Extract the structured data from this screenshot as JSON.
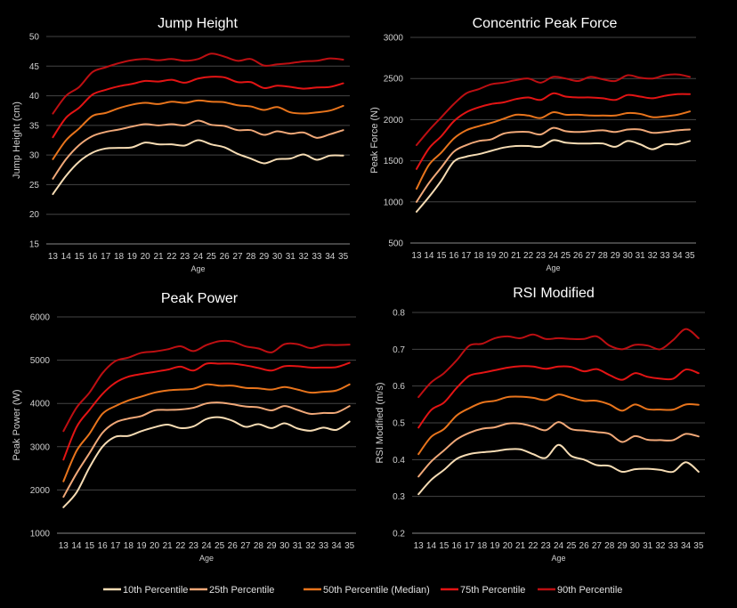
{
  "colors": {
    "background": "#000000",
    "p10": "#f6dcb4",
    "p25": "#f0a878",
    "p50": "#e8741c",
    "p75": "#e31414",
    "p90": "#bd0f12"
  },
  "legend": {
    "placement": "bottom",
    "entries": [
      "10th Percentile",
      "25th Percentile",
      "50th Percentile (Median)",
      "75th Percentile",
      "90th Percentile"
    ]
  },
  "chart_data": [
    {
      "type": "line",
      "title": "Jump Height",
      "xlabel": "Age",
      "ylabel": "Jump Height (cm)",
      "ylim": [
        15,
        50
      ],
      "yticks": [
        15,
        20,
        25,
        30,
        35,
        40,
        45,
        50
      ],
      "grid": true,
      "categories": [
        "13",
        "14",
        "15",
        "16",
        "17",
        "18",
        "19",
        "20",
        "21",
        "22",
        "23",
        "24",
        "25",
        "26",
        "27",
        "28",
        "29",
        "30",
        "31",
        "32",
        "33",
        "34",
        "35"
      ],
      "series": [
        {
          "name": "10th Percentile",
          "values": [
            23.4,
            26.5,
            28.9,
            30.4,
            31.1,
            31.2,
            31.3,
            32.1,
            31.8,
            31.8,
            31.6,
            32.5,
            31.8,
            31.3,
            30.2,
            29.4,
            28.6,
            29.3,
            29.4,
            30.1,
            29.2,
            29.9,
            29.9
          ]
        },
        {
          "name": "25th Percentile",
          "values": [
            26,
            29.3,
            31.7,
            33.2,
            33.9,
            34.3,
            34.8,
            35.2,
            35,
            35.2,
            35,
            35.8,
            35.1,
            34.9,
            34.2,
            34.2,
            33.4,
            34,
            33.6,
            33.8,
            32.9,
            33.5,
            34.2
          ]
        },
        {
          "name": "50th Percentile (Median)",
          "values": [
            29.3,
            32.5,
            34.5,
            36.6,
            37.1,
            37.9,
            38.5,
            38.8,
            38.6,
            39,
            38.8,
            39.2,
            39,
            38.9,
            38.4,
            38.2,
            37.6,
            38.1,
            37.2,
            37,
            37.2,
            37.5,
            38.3
          ]
        },
        {
          "name": "75th Percentile",
          "values": [
            33,
            36.3,
            38,
            40.2,
            41,
            41.6,
            42,
            42.5,
            42.4,
            42.7,
            42.2,
            42.9,
            43.2,
            43.1,
            42.3,
            42.3,
            41.3,
            41.7,
            41.5,
            41.2,
            41.4,
            41.5,
            42.1
          ]
        },
        {
          "name": "90th Percentile",
          "values": [
            37,
            40,
            41.5,
            44,
            44.8,
            45.5,
            46,
            46.2,
            46,
            46.2,
            45.9,
            46.2,
            47.1,
            46.6,
            45.9,
            46.2,
            45.1,
            45.3,
            45.5,
            45.8,
            45.9,
            46.3,
            46.1
          ]
        }
      ]
    },
    {
      "type": "line",
      "title": "Concentric Peak Force",
      "xlabel": "Age",
      "ylabel": "Peak Force (N)",
      "ylim": [
        500,
        3000
      ],
      "yticks": [
        500,
        1000,
        1500,
        2000,
        2500,
        3000
      ],
      "grid": true,
      "categories": [
        "13",
        "14",
        "15",
        "16",
        "17",
        "18",
        "19",
        "20",
        "21",
        "22",
        "23",
        "24",
        "25",
        "26",
        "27",
        "28",
        "29",
        "30",
        "31",
        "32",
        "33",
        "34",
        "35"
      ],
      "series": [
        {
          "name": "10th Percentile",
          "values": [
            880,
            1060,
            1260,
            1490,
            1550,
            1580,
            1620,
            1660,
            1680,
            1680,
            1670,
            1750,
            1720,
            1710,
            1710,
            1710,
            1670,
            1740,
            1700,
            1640,
            1700,
            1700,
            1740
          ]
        },
        {
          "name": "25th Percentile",
          "values": [
            1000,
            1230,
            1420,
            1610,
            1690,
            1740,
            1760,
            1830,
            1850,
            1850,
            1820,
            1900,
            1860,
            1850,
            1860,
            1870,
            1850,
            1880,
            1880,
            1840,
            1850,
            1870,
            1880
          ]
        },
        {
          "name": "50th Percentile (Median)",
          "values": [
            1160,
            1450,
            1600,
            1770,
            1870,
            1920,
            1960,
            2010,
            2060,
            2050,
            2020,
            2090,
            2060,
            2060,
            2050,
            2050,
            2050,
            2080,
            2070,
            2030,
            2040,
            2060,
            2100
          ]
        },
        {
          "name": "75th Percentile",
          "values": [
            1400,
            1650,
            1800,
            1980,
            2090,
            2150,
            2190,
            2210,
            2250,
            2270,
            2240,
            2320,
            2280,
            2270,
            2270,
            2260,
            2240,
            2300,
            2280,
            2260,
            2290,
            2310,
            2310
          ]
        },
        {
          "name": "90th Percentile",
          "values": [
            1690,
            1870,
            2030,
            2190,
            2320,
            2370,
            2430,
            2450,
            2480,
            2500,
            2450,
            2520,
            2500,
            2470,
            2520,
            2490,
            2470,
            2540,
            2510,
            2500,
            2540,
            2550,
            2520
          ]
        }
      ]
    },
    {
      "type": "line",
      "title": "Peak Power",
      "xlabel": "Age",
      "ylabel": "Peak Power (W)",
      "ylim": [
        1000,
        6000
      ],
      "yticks": [
        1000,
        2000,
        3000,
        4000,
        5000,
        6000
      ],
      "grid": true,
      "categories": [
        "13",
        "14",
        "15",
        "16",
        "17",
        "18",
        "19",
        "20",
        "21",
        "22",
        "23",
        "24",
        "25",
        "26",
        "27",
        "28",
        "29",
        "30",
        "31",
        "32",
        "33",
        "34",
        "35"
      ],
      "series": [
        {
          "name": "10th Percentile",
          "values": [
            1600,
            1940,
            2520,
            3000,
            3230,
            3250,
            3360,
            3450,
            3510,
            3430,
            3470,
            3640,
            3680,
            3600,
            3460,
            3520,
            3430,
            3540,
            3420,
            3370,
            3440,
            3390,
            3580
          ]
        },
        {
          "name": "25th Percentile",
          "values": [
            1840,
            2380,
            2850,
            3320,
            3560,
            3650,
            3710,
            3840,
            3850,
            3860,
            3900,
            4000,
            4020,
            3980,
            3930,
            3910,
            3840,
            3940,
            3850,
            3760,
            3780,
            3790,
            3940
          ]
        },
        {
          "name": "50th Percentile (Median)",
          "values": [
            2200,
            2900,
            3300,
            3760,
            3940,
            4070,
            4160,
            4250,
            4300,
            4320,
            4340,
            4440,
            4410,
            4410,
            4360,
            4350,
            4320,
            4380,
            4320,
            4250,
            4270,
            4300,
            4440
          ]
        },
        {
          "name": "75th Percentile",
          "values": [
            2700,
            3450,
            3850,
            4220,
            4480,
            4620,
            4680,
            4730,
            4780,
            4850,
            4760,
            4920,
            4920,
            4920,
            4880,
            4820,
            4760,
            4860,
            4860,
            4830,
            4830,
            4840,
            4940
          ]
        },
        {
          "name": "90th Percentile",
          "values": [
            3360,
            3900,
            4250,
            4700,
            4980,
            5060,
            5170,
            5200,
            5250,
            5320,
            5210,
            5350,
            5440,
            5430,
            5320,
            5270,
            5180,
            5370,
            5370,
            5280,
            5350,
            5350,
            5360
          ]
        }
      ]
    },
    {
      "type": "line",
      "title": "RSI Modified",
      "xlabel": "Age",
      "ylabel": "RSI Modified (m/s)",
      "ylim": [
        0.2,
        0.8
      ],
      "yticks": [
        0.2,
        0.3,
        0.4,
        0.5,
        0.6,
        0.7,
        0.8
      ],
      "grid": true,
      "categories": [
        "13",
        "14",
        "15",
        "16",
        "17",
        "18",
        "19",
        "20",
        "21",
        "22",
        "23",
        "24",
        "25",
        "26",
        "27",
        "28",
        "29",
        "30",
        "31",
        "32",
        "33",
        "34",
        "35"
      ],
      "series": [
        {
          "name": "10th Percentile",
          "values": [
            0.306,
            0.345,
            0.372,
            0.402,
            0.415,
            0.42,
            0.423,
            0.428,
            0.428,
            0.415,
            0.405,
            0.44,
            0.41,
            0.4,
            0.385,
            0.383,
            0.367,
            0.374,
            0.375,
            0.372,
            0.367,
            0.393,
            0.367
          ]
        },
        {
          "name": "25th Percentile",
          "values": [
            0.354,
            0.395,
            0.425,
            0.455,
            0.473,
            0.484,
            0.488,
            0.498,
            0.498,
            0.49,
            0.48,
            0.502,
            0.483,
            0.479,
            0.475,
            0.47,
            0.448,
            0.464,
            0.454,
            0.453,
            0.453,
            0.47,
            0.463
          ]
        },
        {
          "name": "50th Percentile (Median)",
          "values": [
            0.415,
            0.462,
            0.483,
            0.52,
            0.54,
            0.555,
            0.56,
            0.57,
            0.571,
            0.568,
            0.562,
            0.577,
            0.568,
            0.56,
            0.56,
            0.55,
            0.533,
            0.55,
            0.537,
            0.536,
            0.536,
            0.55,
            0.549
          ]
        },
        {
          "name": "75th Percentile",
          "values": [
            0.487,
            0.535,
            0.555,
            0.595,
            0.628,
            0.636,
            0.643,
            0.65,
            0.654,
            0.653,
            0.647,
            0.653,
            0.652,
            0.64,
            0.646,
            0.63,
            0.617,
            0.635,
            0.625,
            0.62,
            0.62,
            0.645,
            0.635
          ]
        },
        {
          "name": "90th Percentile",
          "values": [
            0.57,
            0.61,
            0.635,
            0.67,
            0.71,
            0.715,
            0.73,
            0.735,
            0.73,
            0.74,
            0.728,
            0.73,
            0.728,
            0.728,
            0.735,
            0.71,
            0.7,
            0.712,
            0.71,
            0.7,
            0.725,
            0.755,
            0.73
          ]
        }
      ]
    }
  ]
}
